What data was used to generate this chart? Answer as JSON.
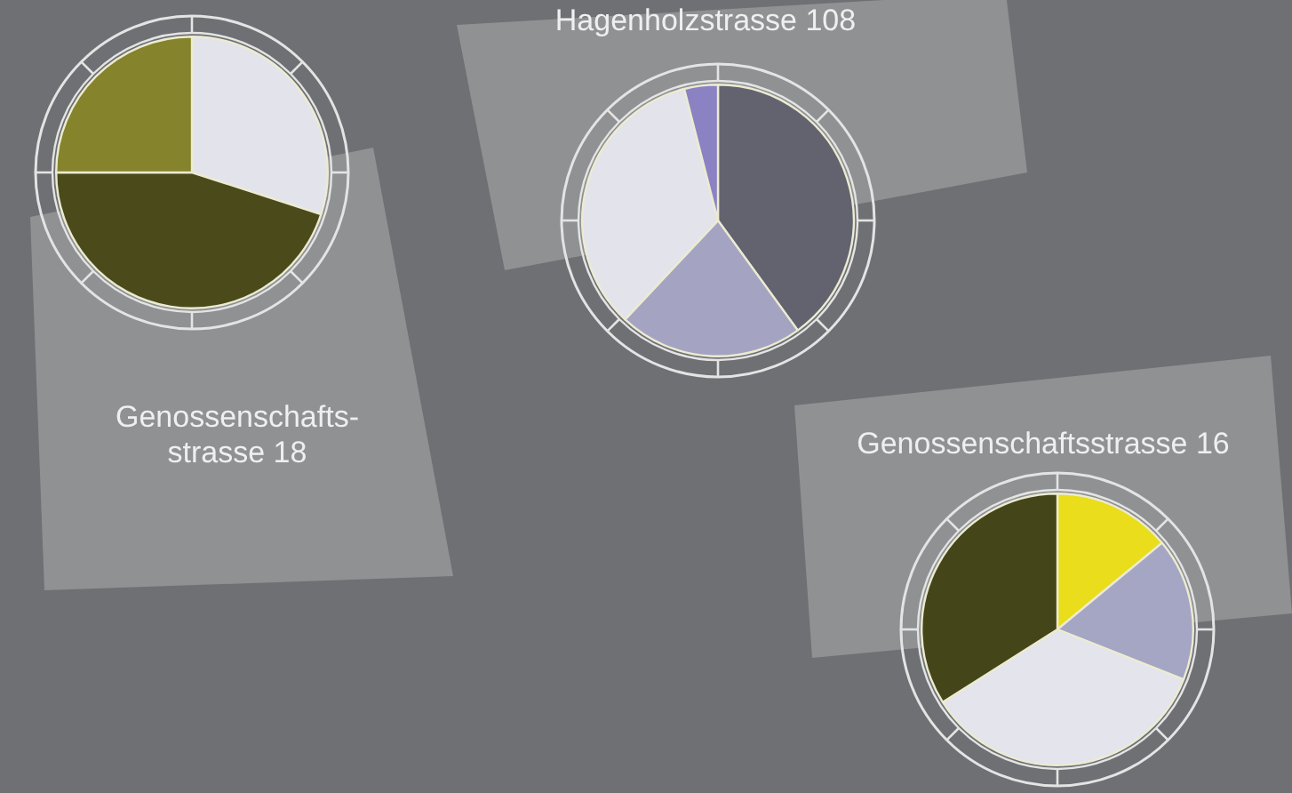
{
  "chart_data": [
    {
      "type": "pie",
      "title": "Genossenschafts-\nstrasse 18",
      "categories": [
        null,
        null,
        null
      ],
      "values": [
        30,
        45,
        25
      ],
      "colors": [
        "#e3e4eb",
        "#4a4a1a",
        "#85832b"
      ]
    },
    {
      "type": "pie",
      "title": "Hagenholzstrasse 108",
      "categories": [
        null,
        null,
        null,
        null
      ],
      "values": [
        40,
        22,
        34,
        4
      ],
      "colors": [
        "#636370",
        "#a4a4c2",
        "#e3e3ec",
        "#8b82c4"
      ]
    },
    {
      "type": "pie",
      "title": "Genossenschaftsstrasse 16",
      "categories": [
        null,
        null,
        null,
        null
      ],
      "values": [
        14,
        17,
        35,
        34
      ],
      "colors": [
        "#e9dd1c",
        "#a5a6c3",
        "#e3e4ec",
        "#45451a"
      ]
    }
  ]
}
